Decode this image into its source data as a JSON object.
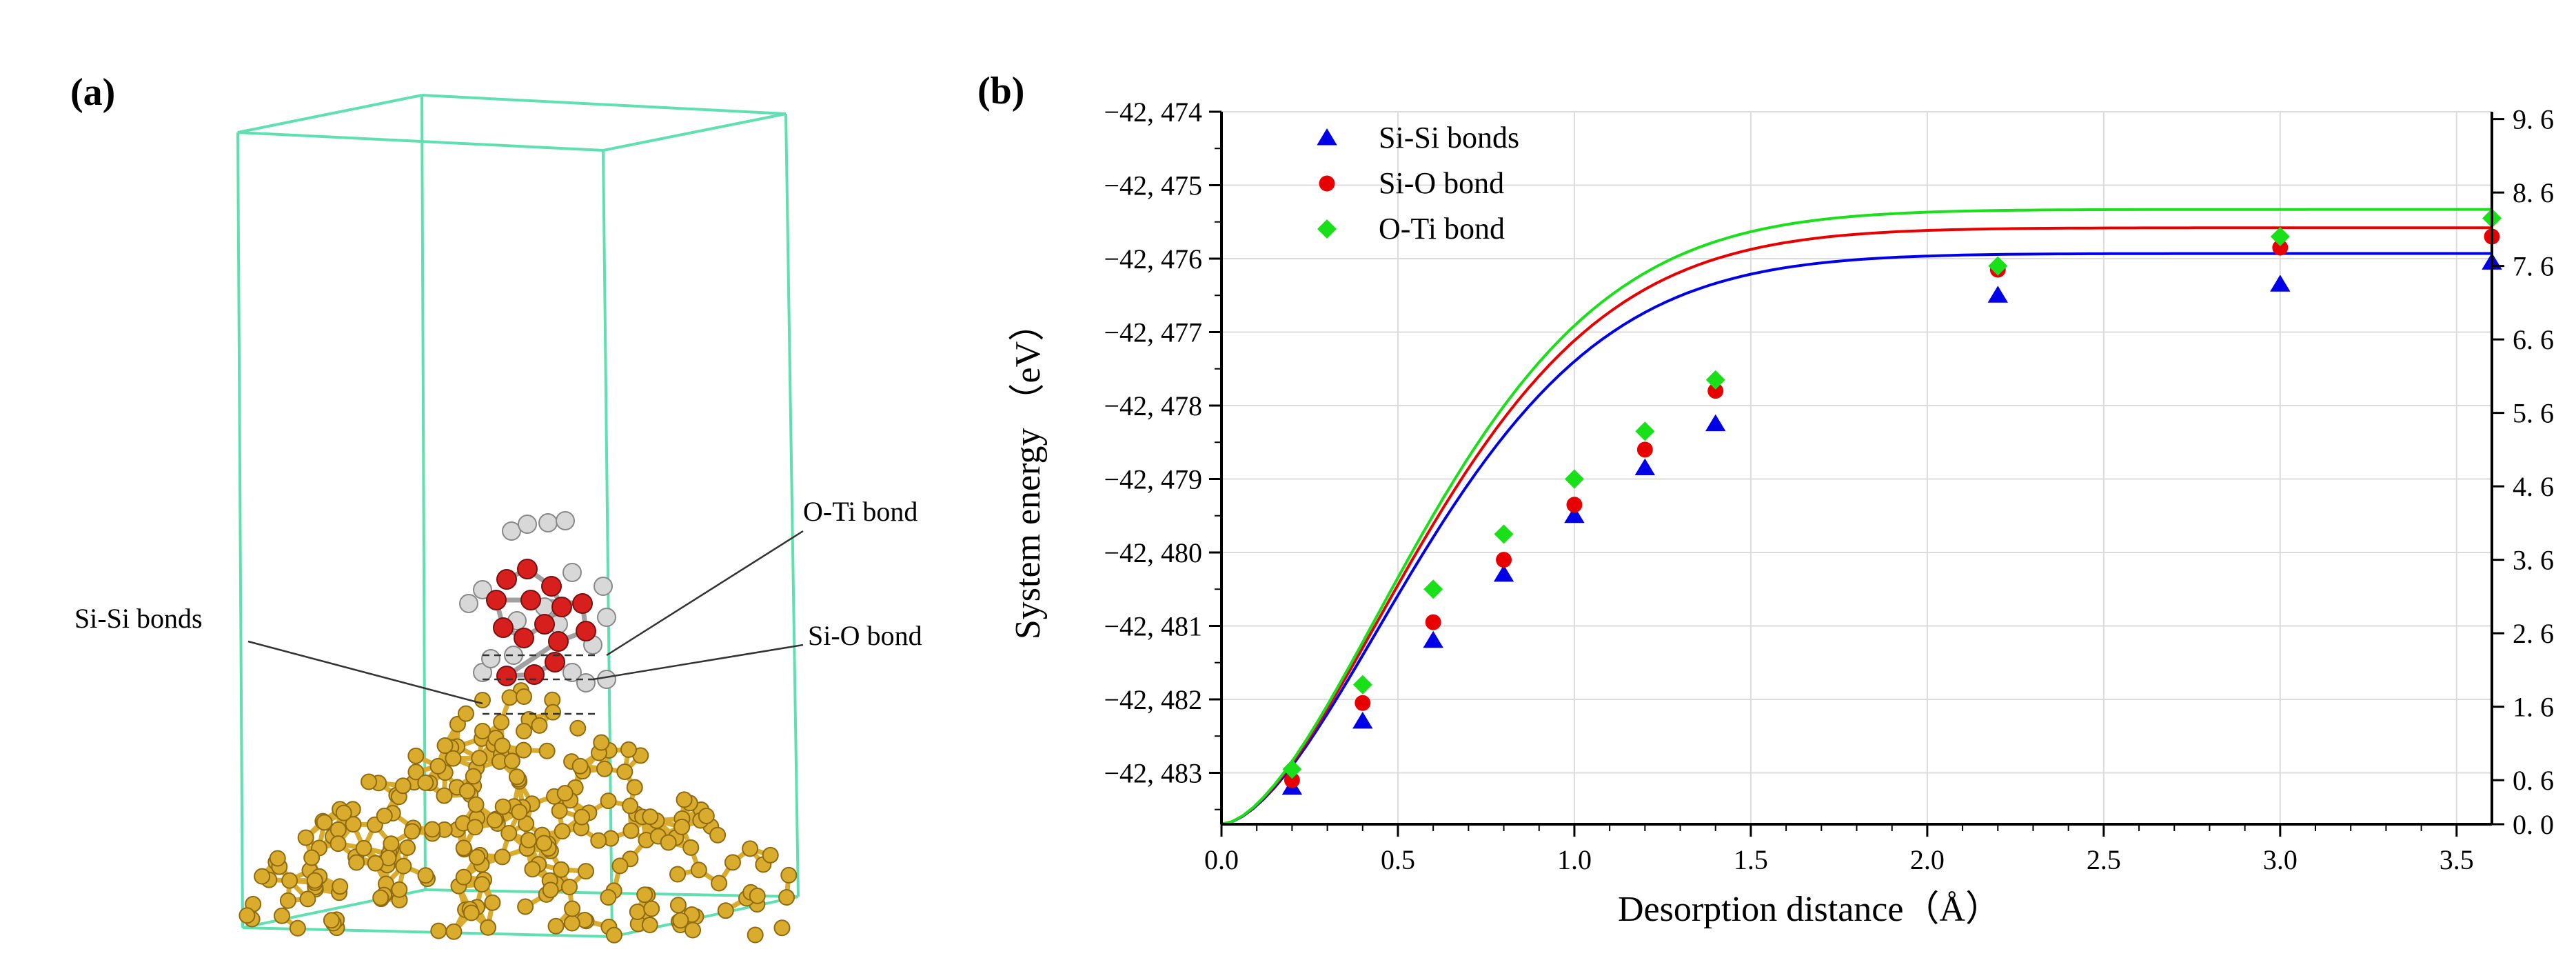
{
  "panel_a": {
    "label": "(a)",
    "annotations": {
      "si_si": "Si-Si bonds",
      "o_ti": "O-Ti bond",
      "si_o": "Si-O bond"
    }
  },
  "colors": {
    "box": "#5fe0b0",
    "gold": "#d9ac2e",
    "gold_dark": "#8f6a10",
    "red_atom": "#d7201e",
    "white_atom": "#d8d8d8",
    "si_si": "#0000e8",
    "si_o": "#e80000",
    "o_ti": "#19e019",
    "grid": "#dcdcdc"
  },
  "chart_data": {
    "panel_label": "(b)",
    "type": "scatter",
    "xlabel": "Desorption distance（Å）",
    "ylabel": "System energy （eV）",
    "xlim": [
      0.0,
      3.6
    ],
    "ylim": [
      -42483.7,
      -42474.0
    ],
    "x_ticks": [
      "0.0",
      "0.5",
      "1.0",
      "1.5",
      "2.0",
      "2.5",
      "3.0",
      "3.5"
    ],
    "x_tick_values": [
      0.0,
      0.5,
      1.0,
      1.5,
      2.0,
      2.5,
      3.0,
      3.5
    ],
    "y_ticks": [
      "−42, 474",
      "−42, 475",
      "−42, 476",
      "−42, 477",
      "−42, 478",
      "−42, 479",
      "−42, 480",
      "−42, 481",
      "−42, 482",
      "−42, 483"
    ],
    "y_tick_values": [
      -42474,
      -42475,
      -42476,
      -42477,
      -42478,
      -42479,
      -42480,
      -42481,
      -42482,
      -42483
    ],
    "y2_ticks": [
      "9. 6",
      "8. 6",
      "7. 6",
      "6. 6",
      "5. 6",
      "4. 6",
      "3. 6",
      "2. 6",
      "1. 6",
      "0. 6",
      "0. 0"
    ],
    "y2_tick_values": [
      9.6,
      8.6,
      7.6,
      6.6,
      5.6,
      4.6,
      3.6,
      2.6,
      1.6,
      0.6,
      0.0
    ],
    "y2lim": [
      0.0,
      9.7
    ],
    "grid": true,
    "legend_position": "top-left",
    "series": [
      {
        "name": "Si-Si bonds",
        "marker": "triangle",
        "color": "#0000e8",
        "x": [
          0.2,
          0.4,
          0.6,
          0.8,
          1.0,
          1.2,
          1.4,
          2.2,
          3.0,
          3.6
        ],
        "y": [
          -42483.2,
          -42482.3,
          -42481.2,
          -42480.3,
          -42479.5,
          -42478.85,
          -42478.25,
          -42476.5,
          -42476.35,
          -42476.05
        ]
      },
      {
        "name": "Si-O bond",
        "marker": "circle",
        "color": "#e80000",
        "x": [
          0.2,
          0.4,
          0.6,
          0.8,
          1.0,
          1.2,
          1.4,
          2.2,
          3.0,
          3.6
        ],
        "y": [
          -42483.1,
          -42482.05,
          -42480.95,
          -42480.1,
          -42479.35,
          -42478.6,
          -42477.8,
          -42476.15,
          -42475.85,
          -42475.7
        ]
      },
      {
        "name": "O-Ti bond",
        "marker": "diamond",
        "color": "#19e019",
        "x": [
          0.2,
          0.4,
          0.6,
          0.8,
          1.0,
          1.2,
          1.4,
          2.2,
          3.0,
          3.6
        ],
        "y": [
          -42482.95,
          -42481.8,
          -42480.5,
          -42479.75,
          -42479.0,
          -42478.35,
          -42477.65,
          -42476.1,
          -42475.7,
          -42475.45
        ]
      }
    ]
  }
}
